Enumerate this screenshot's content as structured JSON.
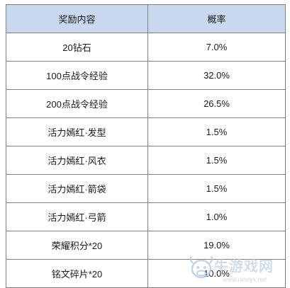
{
  "table": {
    "headers": [
      "奖励内容",
      "概率"
    ],
    "rows": [
      {
        "item": "20钻石",
        "prob": "7.0%"
      },
      {
        "item": "100点战令经验",
        "prob": "32.0%"
      },
      {
        "item": "200点战令经验",
        "prob": "26.5%"
      },
      {
        "item": "活力嫣红·发型",
        "prob": "1.5%"
      },
      {
        "item": "活力嫣红·风衣",
        "prob": "1.5%"
      },
      {
        "item": "活力嫣红·箭袋",
        "prob": "1.5%"
      },
      {
        "item": "活力嫣红·弓箭",
        "prob": "1.0%"
      },
      {
        "item": "荣耀积分*20",
        "prob": "19.0%"
      },
      {
        "item": "铭文碎片*20",
        "prob": "10.0%"
      }
    ]
  },
  "watermark": {
    "logo_icon": "cow-mascot-icon",
    "text": "牛游戏网",
    "url": "www.newyx.net",
    "color": "#c9d6e6"
  },
  "colors": {
    "header_bg": "#c8d8ee",
    "border": "#7f7f7f"
  }
}
